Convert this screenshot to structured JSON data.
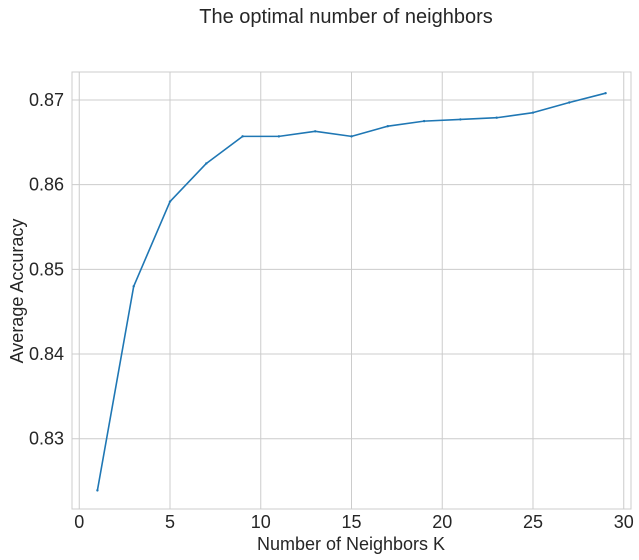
{
  "chart_data": {
    "type": "line",
    "title": "The optimal number of neighbors",
    "xlabel": "Number of Neighbors K",
    "ylabel": "Average Accuracy",
    "xlim": [
      -0.4,
      30.4
    ],
    "ylim": [
      0.8217,
      0.8733
    ],
    "xticks": [
      0,
      5,
      10,
      15,
      20,
      25,
      30
    ],
    "yticks": [
      0.83,
      0.84,
      0.85,
      0.86,
      0.87
    ],
    "ytick_labels": [
      "0.83",
      "0.84",
      "0.85",
      "0.86",
      "0.87"
    ],
    "grid": true,
    "line_color": "#1f77b4",
    "x": [
      1,
      3,
      5,
      7,
      9,
      11,
      13,
      15,
      17,
      19,
      21,
      23,
      25,
      27,
      29
    ],
    "y": [
      0.8239,
      0.848,
      0.858,
      0.8625,
      0.8657,
      0.8657,
      0.8663,
      0.8657,
      0.8669,
      0.8675,
      0.8677,
      0.8679,
      0.8685,
      0.8697,
      0.8708
    ]
  }
}
